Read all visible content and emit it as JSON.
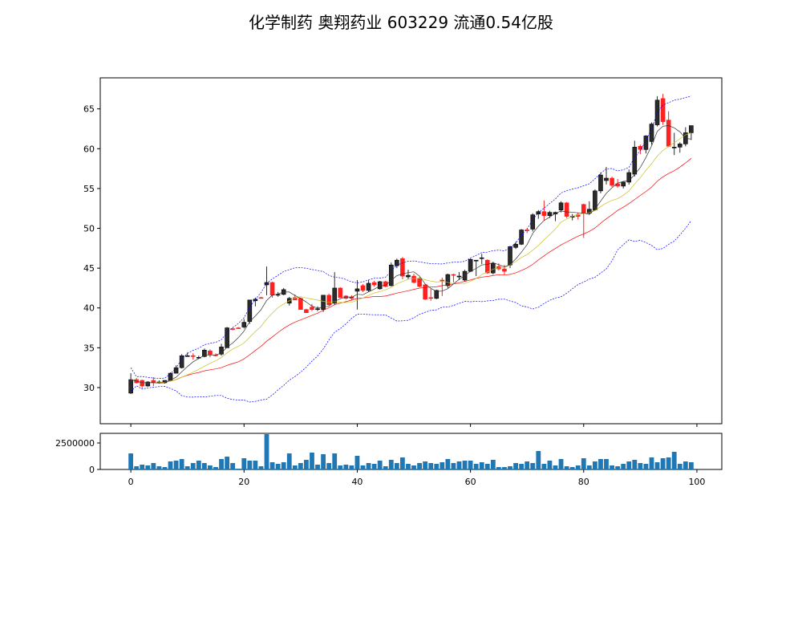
{
  "chart_data": {
    "type": "candlestick",
    "title": "化学制药 奥翔药业 603229 流通0.54亿股",
    "x": {
      "range": [
        -5.4,
        104.4
      ],
      "ticks": [
        0,
        20,
        40,
        60,
        80,
        100
      ]
    },
    "price_axis": {
      "range": [
        25.46,
        68.9
      ],
      "ticks": [
        30,
        35,
        40,
        45,
        50,
        55,
        60,
        65
      ]
    },
    "volume_axis": {
      "range": [
        0,
        3410000
      ],
      "ticks": [
        0,
        2500000
      ]
    },
    "grid": false,
    "colors": {
      "up": "#2b2b2b",
      "down": "#ff2020",
      "ma5": "#000000",
      "ma10": "#c8c020",
      "ma20": "#ff0000",
      "boll": "#0000ff",
      "volume": "#1f77b4"
    },
    "indicators": [
      "MA5",
      "MA10",
      "MA20",
      "BOLL(20,2)"
    ],
    "ohlc": [
      [
        29.3,
        31.8,
        29.2,
        31.0
      ],
      [
        31.0,
        31.2,
        30.5,
        30.6
      ],
      [
        30.9,
        31.0,
        29.9,
        30.2
      ],
      [
        30.2,
        30.8,
        30.1,
        30.7
      ],
      [
        30.9,
        31.3,
        30.2,
        30.6
      ],
      [
        30.7,
        30.9,
        30.5,
        30.7
      ],
      [
        30.6,
        30.9,
        30.5,
        30.9
      ],
      [
        30.9,
        31.9,
        30.9,
        31.8
      ],
      [
        31.8,
        32.8,
        31.8,
        32.5
      ],
      [
        32.5,
        34.2,
        32.4,
        34.0
      ],
      [
        34.0,
        34.4,
        33.9,
        34.0
      ],
      [
        34.0,
        34.3,
        33.5,
        33.9
      ],
      [
        33.7,
        34.0,
        33.6,
        33.8
      ],
      [
        33.9,
        34.9,
        33.8,
        34.7
      ],
      [
        34.6,
        34.8,
        33.8,
        34.1
      ],
      [
        34.1,
        34.3,
        33.9,
        34.0
      ],
      [
        34.2,
        35.5,
        34.0,
        35.1
      ],
      [
        35.0,
        37.6,
        35.0,
        37.5
      ],
      [
        37.4,
        37.5,
        37.2,
        37.3
      ],
      [
        37.5,
        37.6,
        37.4,
        37.4
      ],
      [
        37.6,
        38.6,
        37.4,
        38.2
      ],
      [
        38.3,
        41.0,
        38.0,
        41.0
      ],
      [
        40.9,
        41.3,
        40.2,
        41.1
      ],
      [
        41.3,
        41.4,
        41.2,
        41.2
      ],
      [
        42.9,
        45.2,
        41.6,
        43.2
      ],
      [
        43.2,
        43.3,
        41.3,
        41.6
      ],
      [
        41.6,
        42.0,
        41.4,
        41.7
      ],
      [
        41.7,
        42.5,
        41.6,
        42.3
      ],
      [
        40.6,
        41.4,
        40.3,
        41.2
      ],
      [
        41.3,
        41.7,
        41.0,
        41.0
      ],
      [
        41.2,
        41.3,
        39.8,
        39.8
      ],
      [
        39.8,
        39.9,
        39.4,
        39.4
      ],
      [
        40.1,
        40.5,
        39.6,
        39.8
      ],
      [
        39.8,
        40.2,
        39.6,
        39.9
      ],
      [
        39.8,
        41.6,
        39.5,
        41.6
      ],
      [
        41.6,
        41.8,
        40.3,
        40.4
      ],
      [
        40.6,
        44.5,
        40.4,
        42.5
      ],
      [
        42.5,
        42.6,
        41.3,
        41.3
      ],
      [
        41.5,
        41.6,
        41.1,
        41.2
      ],
      [
        41.4,
        41.6,
        41.0,
        41.2
      ],
      [
        42.1,
        43.5,
        39.8,
        42.4
      ],
      [
        42.8,
        43.0,
        42.0,
        42.2
      ],
      [
        42.2,
        43.5,
        42.0,
        43.1
      ],
      [
        43.2,
        43.4,
        42.7,
        42.9
      ],
      [
        42.4,
        43.4,
        42.3,
        43.3
      ],
      [
        43.3,
        43.4,
        42.6,
        42.7
      ],
      [
        42.8,
        45.7,
        42.7,
        45.4
      ],
      [
        45.3,
        46.2,
        45.0,
        46.0
      ],
      [
        46.2,
        46.4,
        43.6,
        44.0
      ],
      [
        43.9,
        44.8,
        43.6,
        44.1
      ],
      [
        44.0,
        44.3,
        43.1,
        43.2
      ],
      [
        43.7,
        43.9,
        42.6,
        42.7
      ],
      [
        42.9,
        43.0,
        41.0,
        41.1
      ],
      [
        41.3,
        42.4,
        40.9,
        41.2
      ],
      [
        41.2,
        42.3,
        41.1,
        42.2
      ],
      [
        43.5,
        43.8,
        41.5,
        43.4
      ],
      [
        42.8,
        44.3,
        42.5,
        44.2
      ],
      [
        44.2,
        44.3,
        43.2,
        44.1
      ],
      [
        43.9,
        44.5,
        43.5,
        44.0
      ],
      [
        43.5,
        44.8,
        43.3,
        44.6
      ],
      [
        44.6,
        46.2,
        44.5,
        46.1
      ],
      [
        45.9,
        46.0,
        44.0,
        46.0
      ],
      [
        46.2,
        46.8,
        45.5,
        46.3
      ],
      [
        46.0,
        46.1,
        44.3,
        44.4
      ],
      [
        44.4,
        45.8,
        44.2,
        45.6
      ],
      [
        45.2,
        45.6,
        44.7,
        44.9
      ],
      [
        44.9,
        45.4,
        44.2,
        44.6
      ],
      [
        45.4,
        47.8,
        45.0,
        47.7
      ],
      [
        47.6,
        48.3,
        47.4,
        48.0
      ],
      [
        48.0,
        49.9,
        47.9,
        49.8
      ],
      [
        49.8,
        50.0,
        49.4,
        49.7
      ],
      [
        49.9,
        51.9,
        49.6,
        51.7
      ],
      [
        51.8,
        52.3,
        51.2,
        52.1
      ],
      [
        52.1,
        53.5,
        51.0,
        51.6
      ],
      [
        51.6,
        52.2,
        51.3,
        52.0
      ],
      [
        51.8,
        52.1,
        50.9,
        52.0
      ],
      [
        52.3,
        53.4,
        52.0,
        53.2
      ],
      [
        53.2,
        53.3,
        51.3,
        51.5
      ],
      [
        51.4,
        51.8,
        51.0,
        51.5
      ],
      [
        51.7,
        52.0,
        51.1,
        51.5
      ],
      [
        53.0,
        53.1,
        48.8,
        51.9
      ],
      [
        51.9,
        53.4,
        51.7,
        52.4
      ],
      [
        52.3,
        54.9,
        52.2,
        54.7
      ],
      [
        54.7,
        57.0,
        54.4,
        56.7
      ],
      [
        56.0,
        57.7,
        55.5,
        56.3
      ],
      [
        56.3,
        56.5,
        55.2,
        55.4
      ],
      [
        55.6,
        56.2,
        55.1,
        55.3
      ],
      [
        55.3,
        55.9,
        55.0,
        55.8
      ],
      [
        55.8,
        57.4,
        55.5,
        57.0
      ],
      [
        56.8,
        61.0,
        56.5,
        60.2
      ],
      [
        60.3,
        60.5,
        59.3,
        59.9
      ],
      [
        59.9,
        61.7,
        59.4,
        61.6
      ],
      [
        60.9,
        63.3,
        60.5,
        63.1
      ],
      [
        63.0,
        66.6,
        62.8,
        66.1
      ],
      [
        66.3,
        66.9,
        63.0,
        63.4
      ],
      [
        63.6,
        64.7,
        60.2,
        60.3
      ],
      [
        60.1,
        62.0,
        59.2,
        60.2
      ],
      [
        60.2,
        60.8,
        59.5,
        60.6
      ],
      [
        60.6,
        62.7,
        60.3,
        62.0
      ],
      [
        62.0,
        62.9,
        61.1,
        62.9
      ]
    ],
    "volume": [
      1515000,
      303000,
      455000,
      379000,
      606000,
      303000,
      227000,
      758000,
      833000,
      985000,
      303000,
      606000,
      833000,
      606000,
      379000,
      227000,
      985000,
      1212000,
      606000,
      76000,
      1061000,
      833000,
      833000,
      303000,
      3333000,
      682000,
      530000,
      682000,
      1515000,
      379000,
      606000,
      909000,
      1591000,
      455000,
      1439000,
      606000,
      1515000,
      379000,
      455000,
      379000,
      1288000,
      379000,
      606000,
      530000,
      833000,
      303000,
      909000,
      606000,
      1136000,
      530000,
      379000,
      606000,
      758000,
      606000,
      530000,
      682000,
      985000,
      606000,
      758000,
      833000,
      833000,
      530000,
      682000,
      530000,
      909000,
      227000,
      227000,
      303000,
      606000,
      530000,
      758000,
      606000,
      1742000,
      530000,
      833000,
      379000,
      985000,
      303000,
      227000,
      379000,
      1061000,
      379000,
      758000,
      985000,
      985000,
      379000,
      303000,
      530000,
      758000,
      909000,
      606000,
      530000,
      1136000,
      682000,
      1061000,
      1136000,
      1667000,
      530000,
      758000,
      682000
    ]
  }
}
